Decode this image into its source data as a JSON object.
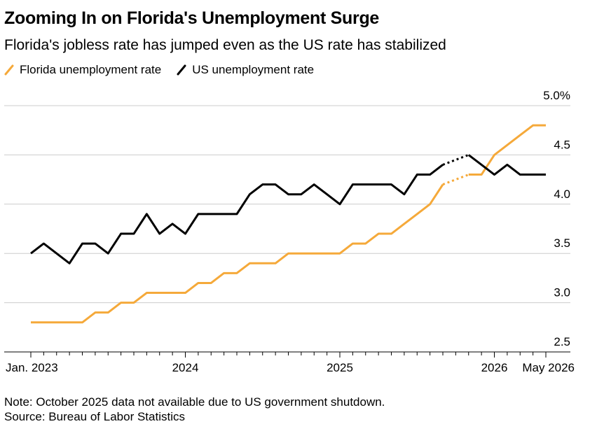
{
  "title": "Zooming In on Florida's Unemployment Surge",
  "subtitle": "Florida's jobless rate has jumped even as the US rate has stabilized",
  "note": "Note: October 2025 data not available due to US government shutdown.",
  "source": "Source: Bureau of Labor Statistics",
  "colors": {
    "florida": "#f5a93a",
    "us": "#000000",
    "grid": "#cccccc"
  },
  "chart_data": {
    "type": "line",
    "x": [
      "2023-01",
      "2023-02",
      "2023-03",
      "2023-04",
      "2023-05",
      "2023-06",
      "2023-07",
      "2023-08",
      "2023-09",
      "2023-10",
      "2023-11",
      "2023-12",
      "2024-01",
      "2024-02",
      "2024-03",
      "2024-04",
      "2024-05",
      "2024-06",
      "2024-07",
      "2024-08",
      "2024-09",
      "2024-10",
      "2024-11",
      "2024-12",
      "2025-01",
      "2025-02",
      "2025-03",
      "2025-04",
      "2025-05",
      "2025-06",
      "2025-07",
      "2025-08",
      "2025-09",
      "2025-10",
      "2025-11",
      "2025-12",
      "2026-01",
      "2026-02",
      "2026-03",
      "2026-04",
      "2026-05"
    ],
    "x_tick_labels": [
      {
        "x": "2023-01",
        "label": "Jan. 2023"
      },
      {
        "x": "2024-01",
        "label": "2024"
      },
      {
        "x": "2025-01",
        "label": "2025"
      },
      {
        "x": "2026-01",
        "label": "2026"
      },
      {
        "x": "2026-05",
        "label": "May 2026"
      }
    ],
    "y_ticks": [
      {
        "value": 5.0,
        "label": "5.0%"
      },
      {
        "value": 4.5,
        "label": "4.5"
      },
      {
        "value": 4.0,
        "label": "4.0"
      },
      {
        "value": 3.5,
        "label": "3.5"
      },
      {
        "value": 3.0,
        "label": "3.0"
      },
      {
        "value": 2.5,
        "label": "2.5"
      }
    ],
    "ylim": [
      2.5,
      5.0
    ],
    "grid": true,
    "legend_position": "top-left",
    "gap_month": "2025-10",
    "series": [
      {
        "name": "Florida unemployment rate",
        "color": "#f5a93a",
        "values": [
          2.8,
          2.8,
          2.8,
          2.8,
          2.8,
          2.9,
          2.9,
          3.0,
          3.0,
          3.1,
          3.1,
          3.1,
          3.1,
          3.2,
          3.2,
          3.3,
          3.3,
          3.4,
          3.4,
          3.4,
          3.5,
          3.5,
          3.5,
          3.5,
          3.5,
          3.6,
          3.6,
          3.7,
          3.7,
          3.8,
          3.9,
          4.0,
          4.2,
          null,
          4.3,
          4.3,
          4.5,
          4.6,
          4.7,
          4.8,
          4.8
        ]
      },
      {
        "name": "US unemployment rate",
        "color": "#000000",
        "values": [
          3.5,
          3.6,
          3.5,
          3.4,
          3.6,
          3.6,
          3.5,
          3.7,
          3.7,
          3.9,
          3.7,
          3.8,
          3.7,
          3.9,
          3.9,
          3.9,
          3.9,
          4.1,
          4.2,
          4.2,
          4.1,
          4.1,
          4.2,
          4.1,
          4.0,
          4.2,
          4.2,
          4.2,
          4.2,
          4.1,
          4.3,
          4.3,
          4.4,
          null,
          4.5,
          4.4,
          4.3,
          4.4,
          4.3,
          4.3,
          4.3
        ]
      }
    ]
  }
}
